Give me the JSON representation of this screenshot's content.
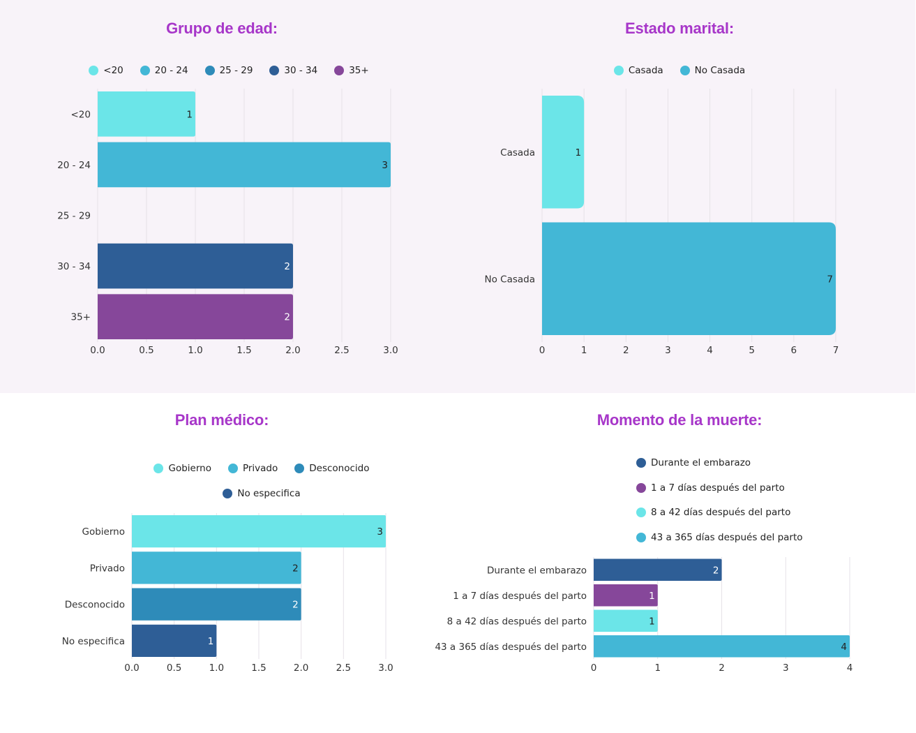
{
  "chart_data": [
    {
      "id": "age",
      "type": "bar",
      "orientation": "horizontal",
      "title": "Grupo de edad:",
      "categories": [
        "<20",
        "20 - 24",
        "25 - 29",
        "30 - 34",
        "35+"
      ],
      "values": [
        1,
        3,
        0,
        2,
        2
      ],
      "value_labels": [
        "1",
        "3",
        "",
        "2",
        "2"
      ],
      "colors": [
        "#6be5e8",
        "#43b7d6",
        "#2e8bb9",
        "#2e5e96",
        "#86479a"
      ],
      "label_colors": [
        "#222222",
        "#222222",
        "#ffffff",
        "#ffffff",
        "#ffffff"
      ],
      "legend": [
        "<20",
        "20 - 24",
        "25 - 29",
        "30 - 34",
        "35+"
      ],
      "legend_position": "top",
      "xlim": [
        0,
        3
      ],
      "xticks": [
        "0.0",
        "0.5",
        "1.0",
        "1.5",
        "2.0",
        "2.5",
        "3.0"
      ],
      "grid": true,
      "xlabel": "",
      "ylabel": ""
    },
    {
      "id": "marital",
      "type": "bar",
      "orientation": "horizontal",
      "title": "Estado marital:",
      "categories": [
        "Casada",
        "No Casada"
      ],
      "values": [
        1,
        7
      ],
      "value_labels": [
        "1",
        "7"
      ],
      "colors": [
        "#6be5e8",
        "#43b7d6"
      ],
      "label_colors": [
        "#222222",
        "#222222"
      ],
      "legend": [
        "Casada",
        "No Casada"
      ],
      "legend_position": "top",
      "xlim": [
        0,
        7
      ],
      "xticks": [
        "0",
        "1",
        "2",
        "3",
        "4",
        "5",
        "6",
        "7"
      ],
      "grid": true,
      "xlabel": "",
      "ylabel": ""
    },
    {
      "id": "plan",
      "type": "bar",
      "orientation": "horizontal",
      "title": "Plan médico:",
      "categories": [
        "Gobierno",
        "Privado",
        "Desconocido",
        "No especifica"
      ],
      "values": [
        3,
        2,
        2,
        1
      ],
      "value_labels": [
        "3",
        "2",
        "2",
        "1"
      ],
      "colors": [
        "#6be5e8",
        "#43b7d6",
        "#2e8bb9",
        "#2e5e96"
      ],
      "label_colors": [
        "#222222",
        "#222222",
        "#ffffff",
        "#ffffff"
      ],
      "legend": [
        "Gobierno",
        "Privado",
        "Desconocido",
        "No especifica"
      ],
      "legend_position": "top",
      "xlim": [
        0,
        3
      ],
      "xticks": [
        "0.0",
        "0.5",
        "1.0",
        "1.5",
        "2.0",
        "2.5",
        "3.0"
      ],
      "grid": true,
      "xlabel": "",
      "ylabel": ""
    },
    {
      "id": "death",
      "type": "bar",
      "orientation": "horizontal",
      "title": "Momento de la muerte:",
      "categories": [
        "Durante el embarazo",
        "1 a 7 días después del parto",
        "8 a 42 días después del parto",
        "43 a 365 días después del parto"
      ],
      "values": [
        2,
        1,
        1,
        4
      ],
      "value_labels": [
        "2",
        "1",
        "1",
        "4"
      ],
      "colors": [
        "#2e5e96",
        "#86479a",
        "#6be5e8",
        "#43b7d6"
      ],
      "label_colors": [
        "#ffffff",
        "#ffffff",
        "#222222",
        "#222222"
      ],
      "legend": [
        "Durante el embarazo",
        "1 a 7 días después del parto",
        "8 a 42 días después del parto",
        "43 a 365 días después del parto"
      ],
      "legend_position": "top",
      "xlim": [
        0,
        4
      ],
      "xticks": [
        "0",
        "1",
        "2",
        "3",
        "4"
      ],
      "grid": true,
      "xlabel": "",
      "ylabel": ""
    }
  ]
}
